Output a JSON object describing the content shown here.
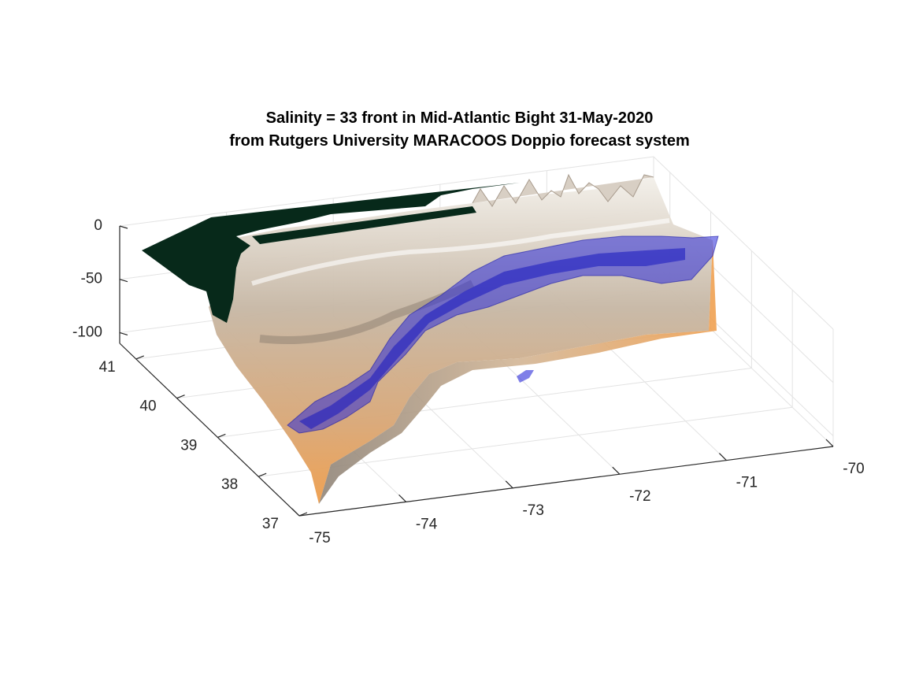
{
  "chart_data": {
    "type": "3d-surface",
    "title": [
      "Salinity = 33 front in Mid-Atlantic Bight 31-May-2020",
      "from Rutgers University MARACOOS Doppio forecast system"
    ],
    "xlabel": "",
    "ylabel": "",
    "zlabel": "",
    "x_ticks": [
      -75,
      -74,
      -73,
      -72,
      -71,
      -70
    ],
    "y_ticks": [
      37,
      38,
      39,
      40,
      41
    ],
    "z_ticks": [
      0,
      -50,
      -100
    ],
    "xlim": [
      -75,
      -70
    ],
    "ylim": [
      37,
      41.4
    ],
    "zlim": [
      -110,
      0
    ],
    "grid": true,
    "legend": "none",
    "layers": [
      {
        "name": "bathymetry",
        "kind": "surface",
        "colormap": [
          "#f2a75a",
          "#c9b8a2",
          "#f2efe9"
        ]
      },
      {
        "name": "land",
        "kind": "mask",
        "color": "#07291a"
      },
      {
        "name": "isosurface",
        "kind": "isosurface",
        "value": 33,
        "color": "#2a2ad8",
        "opacity": 0.55
      }
    ]
  }
}
